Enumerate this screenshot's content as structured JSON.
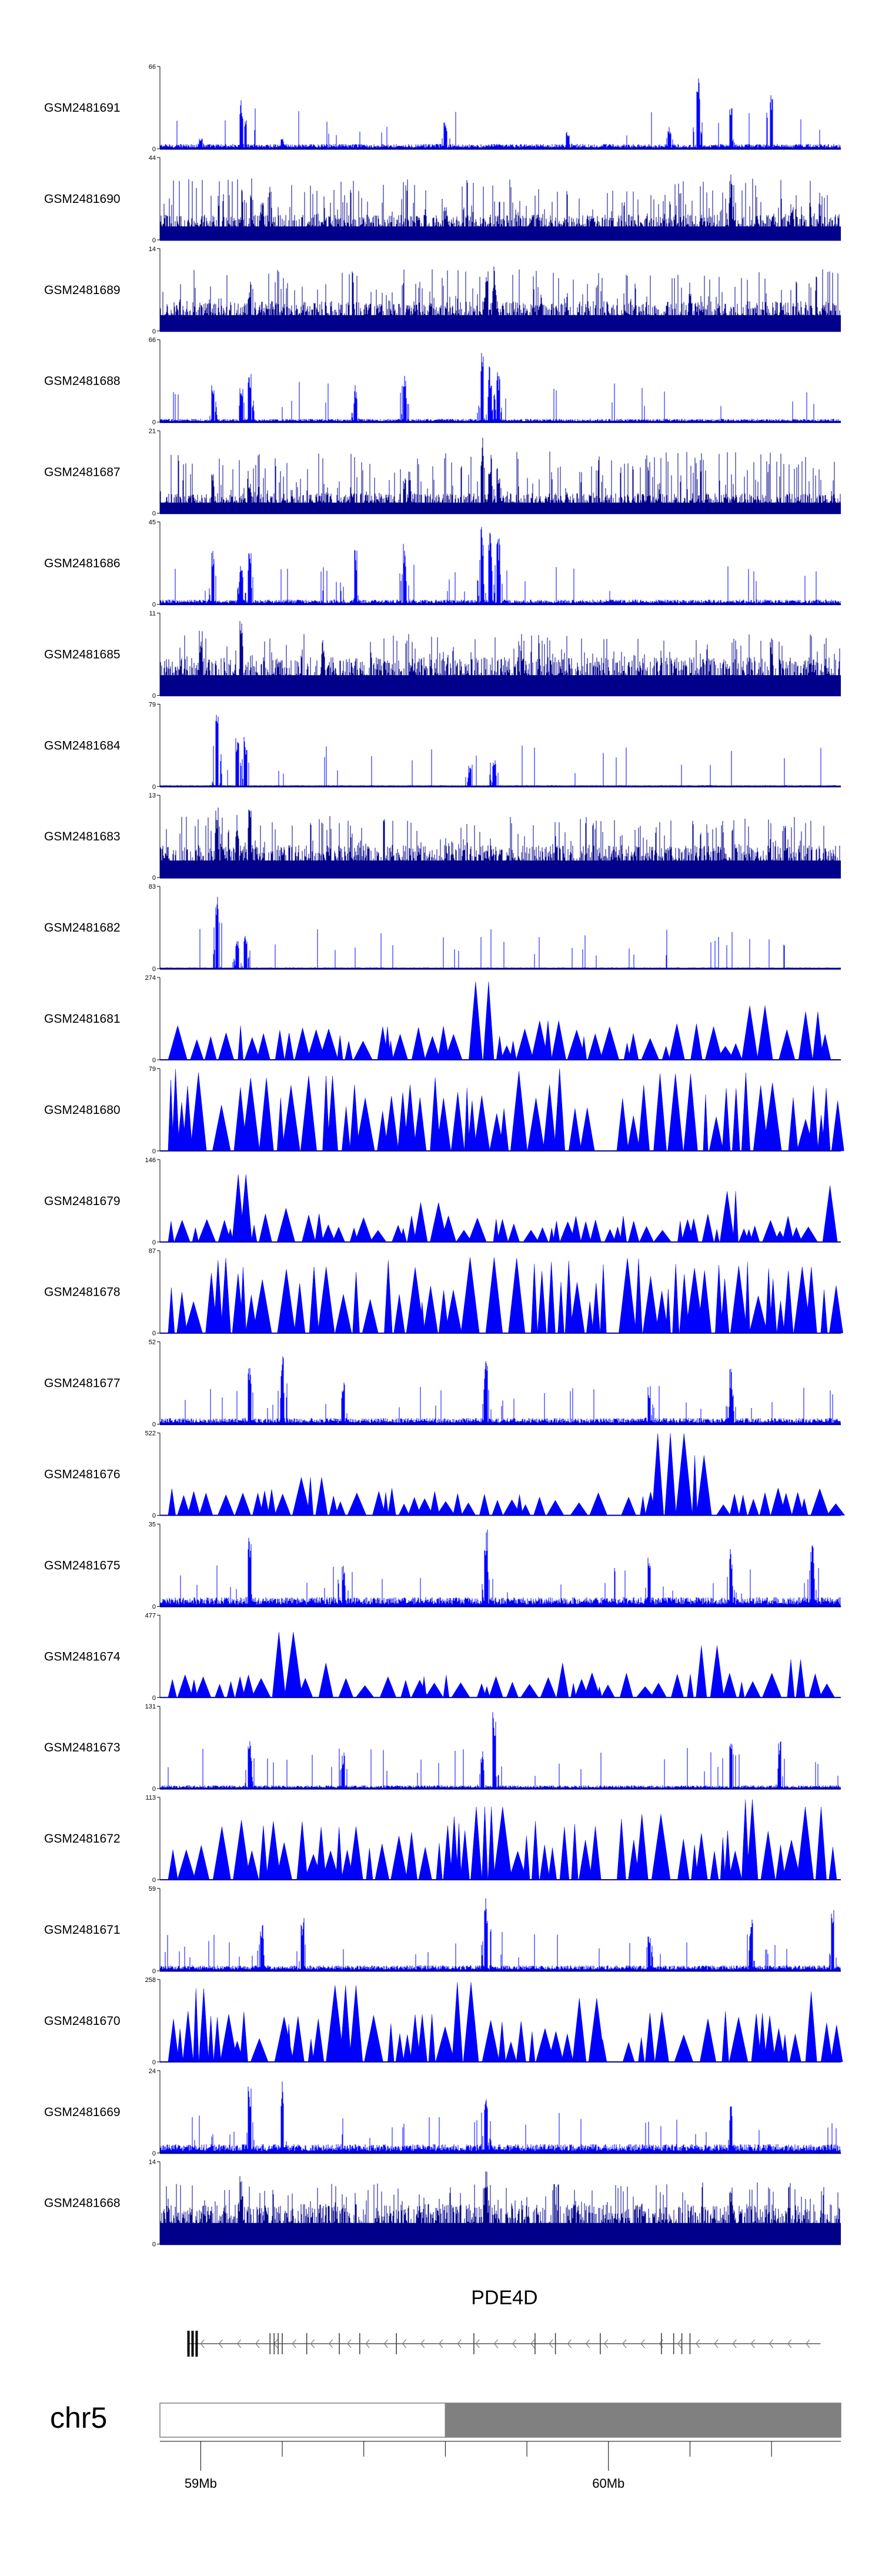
{
  "chart_data": {
    "type": "area",
    "title": "",
    "xlabel": "",
    "ylabel": "",
    "xlim": [
      58.9,
      60.57
    ],
    "x_unit": "Mb",
    "x_ticks": [
      {
        "value": 59.0,
        "label": "59Mb"
      },
      {
        "value": 60.0,
        "label": "60Mb"
      }
    ],
    "x_minor_ticks": [
      59.2,
      59.4,
      59.6,
      59.8,
      60.2,
      60.4
    ],
    "color": "#0000ff",
    "dense_color": "#00008b",
    "tracks": [
      {
        "name": "GSM2481691",
        "ymax": 66,
        "style": "spiky",
        "baseline": 3,
        "peaks": [
          [
            59.0,
            10
          ],
          [
            59.1,
            40
          ],
          [
            59.2,
            8
          ],
          [
            59.6,
            22
          ],
          [
            59.9,
            12
          ],
          [
            60.15,
            18
          ],
          [
            60.22,
            58
          ],
          [
            60.3,
            35
          ],
          [
            60.4,
            50
          ]
        ]
      },
      {
        "name": "GSM2481690",
        "ymax": 44,
        "style": "dense",
        "baseline": 8,
        "peaks": [
          [
            59.15,
            20
          ],
          [
            59.6,
            18
          ],
          [
            60.3,
            35
          ],
          [
            60.45,
            20
          ]
        ]
      },
      {
        "name": "GSM2481689",
        "ymax": 14,
        "style": "dense",
        "baseline": 3,
        "peaks": [
          [
            59.12,
            8
          ],
          [
            59.7,
            9
          ],
          [
            59.72,
            11
          ],
          [
            60.2,
            7
          ]
        ]
      },
      {
        "name": "GSM2481688",
        "ymax": 66,
        "style": "spiky",
        "baseline": 2,
        "peaks": [
          [
            59.03,
            35
          ],
          [
            59.1,
            28
          ],
          [
            59.12,
            40
          ],
          [
            59.38,
            30
          ],
          [
            59.5,
            40
          ],
          [
            59.69,
            62
          ],
          [
            59.71,
            45
          ],
          [
            59.73,
            40
          ]
        ]
      },
      {
        "name": "GSM2481687",
        "ymax": 21,
        "style": "dense",
        "baseline": 3,
        "peaks": [
          [
            59.03,
            10
          ],
          [
            59.12,
            8
          ],
          [
            59.5,
            9
          ],
          [
            59.69,
            20
          ],
          [
            59.71,
            16
          ],
          [
            59.73,
            12
          ]
        ]
      },
      {
        "name": "GSM2481686",
        "ymax": 45,
        "style": "spiky",
        "baseline": 2,
        "peaks": [
          [
            59.03,
            30
          ],
          [
            59.1,
            22
          ],
          [
            59.12,
            28
          ],
          [
            59.38,
            30
          ],
          [
            59.5,
            34
          ],
          [
            59.69,
            44
          ],
          [
            59.71,
            40
          ],
          [
            59.73,
            36
          ]
        ]
      },
      {
        "name": "GSM2481685",
        "ymax": 11,
        "style": "dense",
        "baseline": 3,
        "peaks": [
          [
            59.0,
            9
          ],
          [
            59.1,
            10
          ],
          [
            59.3,
            8
          ],
          [
            60.4,
            8
          ]
        ]
      },
      {
        "name": "GSM2481684",
        "ymax": 79,
        "style": "spiky",
        "baseline": 1,
        "peaks": [
          [
            59.04,
            72
          ],
          [
            59.09,
            48
          ],
          [
            59.11,
            50
          ],
          [
            59.66,
            20
          ],
          [
            59.72,
            25
          ]
        ]
      },
      {
        "name": "GSM2481683",
        "ymax": 13,
        "style": "dense",
        "baseline": 3,
        "peaks": [
          [
            59.04,
            12
          ],
          [
            59.09,
            10
          ],
          [
            59.12,
            12
          ]
        ]
      },
      {
        "name": "GSM2481682",
        "ymax": 83,
        "style": "spiky",
        "baseline": 1,
        "peaks": [
          [
            59.04,
            78
          ],
          [
            59.09,
            30
          ],
          [
            59.11,
            34
          ]
        ]
      },
      {
        "name": "GSM2481681",
        "ymax": 274,
        "style": "tri",
        "baseline": 0,
        "tri_height": 80,
        "gap": [
          60.0,
          60.01
        ],
        "peaks": [
          [
            59.3,
            100
          ],
          [
            59.45,
            110
          ],
          [
            59.7,
            260
          ],
          [
            59.85,
            130
          ],
          [
            60.2,
            120
          ],
          [
            60.35,
            180
          ],
          [
            60.5,
            160
          ]
        ]
      },
      {
        "name": "GSM2481680",
        "ymax": 79,
        "style": "tri",
        "baseline": 0,
        "tri_height": 55,
        "gap": [
          60.0,
          60.01
        ],
        "peaks": [
          [
            59.0,
            75
          ],
          [
            59.15,
            70
          ],
          [
            59.3,
            72
          ],
          [
            60.15,
            74
          ],
          [
            60.3,
            60
          ]
        ]
      },
      {
        "name": "GSM2481679",
        "ymax": 146,
        "style": "tri",
        "baseline": 0,
        "tri_height": 35,
        "gap": [
          60.0,
          60.01
        ],
        "peaks": [
          [
            59.1,
            120
          ],
          [
            59.2,
            60
          ],
          [
            59.55,
            70
          ],
          [
            60.3,
            90
          ],
          [
            60.55,
            100
          ]
        ]
      },
      {
        "name": "GSM2481678",
        "ymax": 87,
        "style": "tri",
        "baseline": 0,
        "tri_height": 55,
        "gap": [
          60.0,
          60.01
        ],
        "peaks": [
          [
            59.3,
            70
          ],
          [
            59.7,
            80
          ],
          [
            60.1,
            60
          ],
          [
            60.5,
            70
          ]
        ]
      },
      {
        "name": "GSM2481677",
        "ymax": 52,
        "style": "spiky",
        "baseline": 3,
        "peaks": [
          [
            59.12,
            36
          ],
          [
            59.2,
            50
          ],
          [
            59.35,
            28
          ],
          [
            59.7,
            40
          ],
          [
            60.1,
            25
          ],
          [
            60.3,
            35
          ]
        ]
      },
      {
        "name": "GSM2481676",
        "ymax": 522,
        "style": "tri",
        "baseline": 0,
        "tri_height": 120,
        "gap": [
          60.0,
          60.01
        ],
        "peaks": [
          [
            59.27,
            240
          ],
          [
            60.15,
            520
          ],
          [
            60.22,
            380
          ],
          [
            60.45,
            140
          ]
        ]
      },
      {
        "name": "GSM2481675",
        "ymax": 35,
        "style": "spiky",
        "baseline": 3,
        "peaks": [
          [
            59.12,
            30
          ],
          [
            59.35,
            18
          ],
          [
            59.7,
            34
          ],
          [
            60.1,
            22
          ],
          [
            60.3,
            26
          ],
          [
            60.5,
            28
          ]
        ]
      },
      {
        "name": "GSM2481674",
        "ymax": 477,
        "style": "tri",
        "baseline": 0,
        "tri_height": 100,
        "gap": [
          60.0,
          60.01
        ],
        "peaks": [
          [
            59.2,
            380
          ],
          [
            59.3,
            200
          ],
          [
            59.9,
            200
          ],
          [
            60.25,
            300
          ],
          [
            60.45,
            220
          ]
        ]
      },
      {
        "name": "GSM2481673",
        "ymax": 131,
        "style": "spiky",
        "baseline": 4,
        "peaks": [
          [
            59.12,
            80
          ],
          [
            59.35,
            60
          ],
          [
            59.69,
            60
          ],
          [
            59.72,
            128
          ],
          [
            60.3,
            100
          ],
          [
            60.42,
            80
          ]
        ]
      },
      {
        "name": "GSM2481672",
        "ymax": 113,
        "style": "tri",
        "baseline": 0,
        "tri_height": 60,
        "gap": [
          60.0,
          60.01
        ],
        "peaks": [
          [
            59.7,
            100
          ],
          [
            60.1,
            90
          ],
          [
            60.35,
            110
          ],
          [
            60.5,
            100
          ]
        ]
      },
      {
        "name": "GSM2481671",
        "ymax": 59,
        "style": "spiky",
        "baseline": 3,
        "peaks": [
          [
            59.15,
            34
          ],
          [
            59.25,
            38
          ],
          [
            59.7,
            56
          ],
          [
            60.1,
            30
          ],
          [
            60.35,
            40
          ],
          [
            60.55,
            50
          ]
        ]
      },
      {
        "name": "GSM2481670",
        "ymax": 258,
        "style": "tri",
        "baseline": 0,
        "tri_height": 110,
        "gap": [
          60.0,
          60.01
        ],
        "peaks": [
          [
            59.0,
            230
          ],
          [
            59.35,
            240
          ],
          [
            59.65,
            250
          ],
          [
            59.95,
            200
          ],
          [
            60.5,
            220
          ]
        ]
      },
      {
        "name": "GSM2481669",
        "ymax": 24,
        "style": "spiky",
        "baseline": 2,
        "peaks": [
          [
            59.12,
            20
          ],
          [
            59.2,
            22
          ],
          [
            59.7,
            16
          ],
          [
            60.3,
            14
          ]
        ]
      },
      {
        "name": "GSM2481668",
        "ymax": 14,
        "style": "dense",
        "baseline": 4,
        "peaks": [
          [
            59.1,
            12
          ],
          [
            59.7,
            13
          ],
          [
            60.3,
            11
          ]
        ]
      }
    ],
    "gene": {
      "name": "PDE4D",
      "start": 58.97,
      "end": 60.52,
      "strand": "-",
      "exons": [
        58.97,
        58.98,
        58.99,
        59.17,
        59.18,
        59.19,
        59.2,
        59.26,
        59.34,
        59.39,
        59.48,
        59.67,
        59.82,
        59.87,
        59.98,
        60.13,
        60.16,
        60.18,
        60.2
      ]
    },
    "ideogram": {
      "chromosome": "chr5",
      "bands": [
        {
          "start": 58.9,
          "end": 59.6,
          "color": "#ffffff"
        },
        {
          "start": 59.6,
          "end": 60.57,
          "color": "#808080"
        }
      ]
    }
  }
}
